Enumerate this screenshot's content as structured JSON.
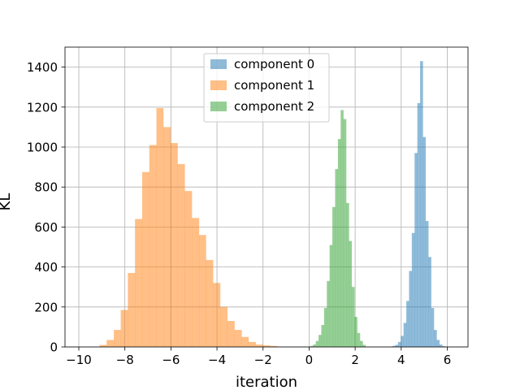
{
  "chart_data": {
    "type": "bar",
    "subtype": "histogram",
    "title": "",
    "xlabel": "iteration",
    "ylabel": "KL",
    "xlim": [
      -10.6,
      6.9
    ],
    "ylim": [
      0,
      1500
    ],
    "xticks": [
      -10,
      -8,
      -6,
      -4,
      -2,
      0,
      2,
      4,
      6
    ],
    "xtick_labels": [
      "−10",
      "−8",
      "−6",
      "−4",
      "−2",
      "0",
      "2",
      "4",
      "6"
    ],
    "yticks": [
      0,
      200,
      400,
      600,
      800,
      1000,
      1200,
      1400
    ],
    "ytick_labels": [
      "0",
      "200",
      "400",
      "600",
      "800",
      "1000",
      "1200",
      "1400"
    ],
    "grid": true,
    "legend_position": "top-center",
    "series": [
      {
        "name": "component 0",
        "color": "#1f77b4",
        "alpha": 0.5,
        "bins": [
          {
            "x0": 3.62,
            "x1": 3.74,
            "value": 5
          },
          {
            "x0": 3.74,
            "x1": 3.86,
            "value": 10
          },
          {
            "x0": 3.86,
            "x1": 3.98,
            "value": 25
          },
          {
            "x0": 3.98,
            "x1": 4.1,
            "value": 55
          },
          {
            "x0": 4.1,
            "x1": 4.22,
            "value": 120
          },
          {
            "x0": 4.22,
            "x1": 4.34,
            "value": 230
          },
          {
            "x0": 4.34,
            "x1": 4.46,
            "value": 380
          },
          {
            "x0": 4.46,
            "x1": 4.58,
            "value": 570
          },
          {
            "x0": 4.58,
            "x1": 4.7,
            "value": 970
          },
          {
            "x0": 4.7,
            "x1": 4.82,
            "value": 1220
          },
          {
            "x0": 4.82,
            "x1": 4.94,
            "value": 1430
          },
          {
            "x0": 4.94,
            "x1": 5.06,
            "value": 1050
          },
          {
            "x0": 5.06,
            "x1": 5.18,
            "value": 630
          },
          {
            "x0": 5.18,
            "x1": 5.3,
            "value": 450
          },
          {
            "x0": 5.3,
            "x1": 5.42,
            "value": 195
          },
          {
            "x0": 5.42,
            "x1": 5.54,
            "value": 85
          },
          {
            "x0": 5.54,
            "x1": 5.66,
            "value": 35
          },
          {
            "x0": 5.66,
            "x1": 5.78,
            "value": 12
          },
          {
            "x0": 5.78,
            "x1": 5.9,
            "value": 4
          }
        ]
      },
      {
        "name": "component 1",
        "color": "#ff7f0e",
        "alpha": 0.5,
        "bins": [
          {
            "x0": -9.1,
            "x1": -8.79,
            "value": 10
          },
          {
            "x0": -8.79,
            "x1": -8.48,
            "value": 35
          },
          {
            "x0": -8.48,
            "x1": -8.18,
            "value": 85
          },
          {
            "x0": -8.18,
            "x1": -7.87,
            "value": 185
          },
          {
            "x0": -7.87,
            "x1": -7.56,
            "value": 370
          },
          {
            "x0": -7.56,
            "x1": -7.25,
            "value": 640
          },
          {
            "x0": -7.25,
            "x1": -6.94,
            "value": 875
          },
          {
            "x0": -6.94,
            "x1": -6.63,
            "value": 1010
          },
          {
            "x0": -6.63,
            "x1": -6.33,
            "value": 1195
          },
          {
            "x0": -6.33,
            "x1": -6.02,
            "value": 1100
          },
          {
            "x0": -6.02,
            "x1": -5.71,
            "value": 1020
          },
          {
            "x0": -5.71,
            "x1": -5.4,
            "value": 915
          },
          {
            "x0": -5.4,
            "x1": -5.09,
            "value": 780
          },
          {
            "x0": -5.09,
            "x1": -4.78,
            "value": 645
          },
          {
            "x0": -4.78,
            "x1": -4.48,
            "value": 560
          },
          {
            "x0": -4.48,
            "x1": -4.17,
            "value": 435
          },
          {
            "x0": -4.17,
            "x1": -3.86,
            "value": 320
          },
          {
            "x0": -3.86,
            "x1": -3.55,
            "value": 200
          },
          {
            "x0": -3.55,
            "x1": -3.24,
            "value": 130
          },
          {
            "x0": -3.24,
            "x1": -2.93,
            "value": 85
          },
          {
            "x0": -2.93,
            "x1": -2.63,
            "value": 50
          },
          {
            "x0": -2.63,
            "x1": -2.32,
            "value": 25
          },
          {
            "x0": -2.32,
            "x1": -2.01,
            "value": 12
          },
          {
            "x0": -2.01,
            "x1": -1.7,
            "value": 8
          },
          {
            "x0": -1.7,
            "x1": -1.39,
            "value": 5
          }
        ]
      },
      {
        "name": "component 2",
        "color": "#2ca02c",
        "alpha": 0.5,
        "bins": [
          {
            "x0": 0.05,
            "x1": 0.17,
            "value": 5
          },
          {
            "x0": 0.17,
            "x1": 0.29,
            "value": 12
          },
          {
            "x0": 0.29,
            "x1": 0.41,
            "value": 30
          },
          {
            "x0": 0.41,
            "x1": 0.53,
            "value": 60
          },
          {
            "x0": 0.53,
            "x1": 0.65,
            "value": 110
          },
          {
            "x0": 0.65,
            "x1": 0.77,
            "value": 195
          },
          {
            "x0": 0.77,
            "x1": 0.89,
            "value": 330
          },
          {
            "x0": 0.89,
            "x1": 1.01,
            "value": 510
          },
          {
            "x0": 1.01,
            "x1": 1.13,
            "value": 700
          },
          {
            "x0": 1.13,
            "x1": 1.25,
            "value": 890
          },
          {
            "x0": 1.25,
            "x1": 1.37,
            "value": 1040
          },
          {
            "x0": 1.37,
            "x1": 1.49,
            "value": 1185
          },
          {
            "x0": 1.49,
            "x1": 1.61,
            "value": 1140
          },
          {
            "x0": 1.61,
            "x1": 1.73,
            "value": 720
          },
          {
            "x0": 1.73,
            "x1": 1.85,
            "value": 530
          },
          {
            "x0": 1.85,
            "x1": 1.97,
            "value": 300
          },
          {
            "x0": 1.97,
            "x1": 2.09,
            "value": 150
          },
          {
            "x0": 2.09,
            "x1": 2.21,
            "value": 70
          },
          {
            "x0": 2.21,
            "x1": 2.33,
            "value": 30
          },
          {
            "x0": 2.33,
            "x1": 2.45,
            "value": 10
          }
        ]
      }
    ]
  }
}
